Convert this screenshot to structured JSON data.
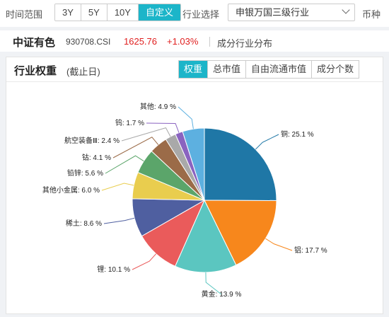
{
  "filters": {
    "range_label": "时间范围",
    "ranges": [
      {
        "label": "3Y",
        "active": false
      },
      {
        "label": "5Y",
        "active": false
      },
      {
        "label": "10Y",
        "active": false
      },
      {
        "label": "自定义",
        "active": true
      }
    ],
    "industry_label": "行业选择",
    "industry_value": "申银万国三级行业",
    "currency_label": "币种"
  },
  "index": {
    "name": "中证有色",
    "code": "930708.CSI",
    "price": "1625.76",
    "change": "+1.03%",
    "link": "成分行业分布"
  },
  "panel": {
    "title": "行业权重",
    "subtitle": "(截止日)",
    "tabs": [
      {
        "label": "权重",
        "active": true
      },
      {
        "label": "总市值",
        "active": false
      },
      {
        "label": "自由流通市值",
        "active": false
      },
      {
        "label": "成分个数",
        "active": false
      }
    ]
  },
  "chart_data": {
    "type": "pie",
    "series": [
      {
        "name": "铜",
        "value": 25.1,
        "label": "铜: 25.1 %",
        "color": "#1f77a6"
      },
      {
        "name": "铝",
        "value": 17.7,
        "label": "铝: 17.7 %",
        "color": "#f7871c"
      },
      {
        "name": "黄金",
        "value": 13.9,
        "label": "黄金: 13.9 %",
        "color": "#5bc6c0"
      },
      {
        "name": "锂",
        "value": 10.1,
        "label": "锂: 10.1 %",
        "color": "#ea5b5b"
      },
      {
        "name": "稀土",
        "value": 8.6,
        "label": "稀土: 8.6 %",
        "color": "#4f5fa0"
      },
      {
        "name": "其他小金属",
        "value": 6.0,
        "label": "其他小金属: 6.0 %",
        "color": "#e9cd4e"
      },
      {
        "name": "铅锌",
        "value": 5.6,
        "label": "铅锌: 5.6 %",
        "color": "#5ba56a"
      },
      {
        "name": "钴",
        "value": 4.1,
        "label": "钴: 4.1 %",
        "color": "#9b6b48"
      },
      {
        "name": "航空装备Ⅲ",
        "value": 2.4,
        "label": "航空装备Ⅲ: 2.4 %",
        "color": "#a9a9a9"
      },
      {
        "name": "钨",
        "value": 1.7,
        "label": "钨: 1.7 %",
        "color": "#8a63c0"
      },
      {
        "name": "其他",
        "value": 4.9,
        "label": "其他: 4.9 %",
        "color": "#5db0e0"
      }
    ]
  }
}
